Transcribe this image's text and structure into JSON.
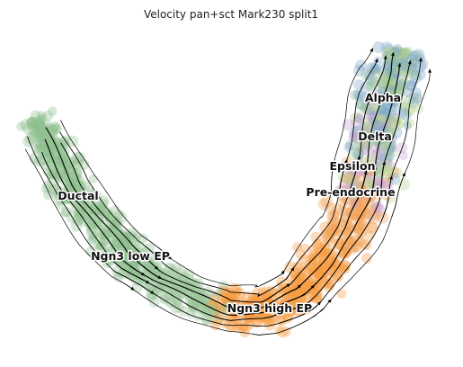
{
  "chart_data": {
    "type": "scatter",
    "title": "Velocity pan+sct Mark230 split1",
    "xlabel": "",
    "ylabel": "",
    "axes_visible": false,
    "grid": false,
    "overlay": "velocity-streamlines",
    "colors": {
      "ductal": "#8fbf8f",
      "ngn3_low": "#9cc79a",
      "ngn3_high": "#f79a3e",
      "pre_endocrine": "#f3a35a",
      "alpha": "#7aa6c8",
      "delta": "#b8d38c",
      "epsilon": "#c9a2d6",
      "stream": "#000000"
    },
    "series": [
      {
        "name": "Ductal",
        "color": "#8fbf8f",
        "center": [
          75,
          190
        ]
      },
      {
        "name": "Ngn3 low EP",
        "color": "#9cc79a",
        "center": [
          145,
          280
        ]
      },
      {
        "name": "Ngn3 high EP",
        "color": "#f79a3e",
        "center": [
          300,
          340
        ]
      },
      {
        "name": "Pre-endocrine",
        "color": "#f3a35a",
        "center": [
          390,
          235
        ]
      },
      {
        "name": "Epsilon",
        "color": "#c9a2d6",
        "center": [
          390,
          180
        ]
      },
      {
        "name": "Delta",
        "color": "#b8d38c",
        "center": [
          415,
          145
        ]
      },
      {
        "name": "Alpha",
        "color": "#7aa6c8",
        "center": [
          425,
          100
        ]
      }
    ],
    "labels": [
      {
        "text": "Ductal",
        "x": 87,
        "y": 222
      },
      {
        "text": "Ngn3 low EP",
        "x": 145,
        "y": 289
      },
      {
        "text": "Ngn3 high EP",
        "x": 300,
        "y": 347
      },
      {
        "text": "Pre-endocrine",
        "x": 390,
        "y": 218
      },
      {
        "text": "Epsilon",
        "x": 392,
        "y": 189
      },
      {
        "text": "Delta",
        "x": 417,
        "y": 156
      },
      {
        "text": "Alpha",
        "x": 426,
        "y": 113
      }
    ]
  }
}
